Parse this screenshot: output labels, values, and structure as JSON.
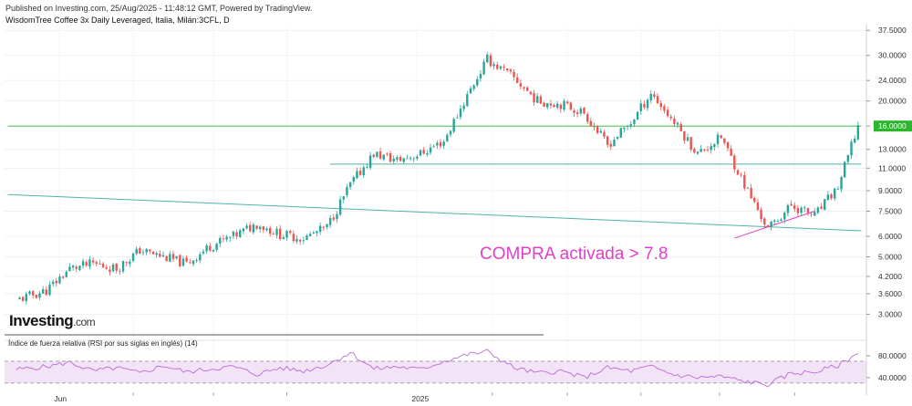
{
  "header": {
    "published": "Published on Investing.com, 25/Aug/2025 - 11:48:12 GMT, Powered by TradingView.",
    "instrument": "WisdomTree Coffee 3x Daily Leveraged, Italia, Milán:3CFL, D"
  },
  "logo": {
    "brand": "Investing",
    "domain": ".com"
  },
  "rsi": {
    "title": "Índice de fuerza relativa (RSI por sus siglas en inglés) (14)"
  },
  "annotation": {
    "text": "COMPRA activada > 7.8"
  },
  "colors": {
    "up": "#26a69a",
    "down": "#ef5350",
    "trend": "#4fb3a8",
    "last": "#2db52d",
    "annot": "#e040c8",
    "rsi": "#b96bd8",
    "rsi_band": "#f3e3f7"
  },
  "chart_data": [
    {
      "type": "candlestick",
      "y_scale": "log",
      "ylim": [
        2.6,
        38.5
      ],
      "y_ticks": [
        "37.5000",
        "30.0000",
        "24.0000",
        "20.0000",
        "16.0000",
        "13.0000",
        "11.0000",
        "9.0000",
        "7.5000",
        "6.0000",
        "5.0000",
        "4.2000",
        "3.6000",
        "3.0000"
      ],
      "x_ticks": [
        "Jun",
        "2025"
      ],
      "last_price": "16.0000",
      "close_path": [
        {
          "d": "2024-05-06",
          "c": 3.4
        },
        {
          "d": "2024-05-24",
          "c": 3.7
        },
        {
          "d": "2024-06-07",
          "c": 4.5
        },
        {
          "d": "2024-06-21",
          "c": 4.7
        },
        {
          "d": "2024-07-05",
          "c": 4.5
        },
        {
          "d": "2024-07-19",
          "c": 5.3
        },
        {
          "d": "2024-08-02",
          "c": 5.0
        },
        {
          "d": "2024-08-16",
          "c": 4.7
        },
        {
          "d": "2024-08-30",
          "c": 5.5
        },
        {
          "d": "2024-09-13",
          "c": 6.0
        },
        {
          "d": "2024-09-27",
          "c": 6.7
        },
        {
          "d": "2024-10-11",
          "c": 6.1
        },
        {
          "d": "2024-10-25",
          "c": 5.9
        },
        {
          "d": "2024-11-08",
          "c": 6.5
        },
        {
          "d": "2024-11-22",
          "c": 9.5
        },
        {
          "d": "2024-12-06",
          "c": 12.5
        },
        {
          "d": "2024-12-20",
          "c": 11.8
        },
        {
          "d": "2025-01-03",
          "c": 12.5
        },
        {
          "d": "2025-01-17",
          "c": 14.0
        },
        {
          "d": "2025-01-31",
          "c": 21.0
        },
        {
          "d": "2025-02-12",
          "c": 29.0
        },
        {
          "d": "2025-02-28",
          "c": 24.5
        },
        {
          "d": "2025-03-14",
          "c": 20.0
        },
        {
          "d": "2025-03-28",
          "c": 19.5
        },
        {
          "d": "2025-04-11",
          "c": 18.0
        },
        {
          "d": "2025-04-25",
          "c": 13.5
        },
        {
          "d": "2025-05-09",
          "c": 16.5
        },
        {
          "d": "2025-05-21",
          "c": 21.5
        },
        {
          "d": "2025-06-04",
          "c": 16.5
        },
        {
          "d": "2025-06-18",
          "c": 12.5
        },
        {
          "d": "2025-07-02",
          "c": 14.5
        },
        {
          "d": "2025-07-16",
          "c": 9.5
        },
        {
          "d": "2025-07-30",
          "c": 6.4
        },
        {
          "d": "2025-08-13",
          "c": 7.9
        },
        {
          "d": "2025-08-27",
          "c": 7.2
        },
        {
          "d": "2025-09-10",
          "c": 9.3
        },
        {
          "d": "2025-09-22",
          "c": 16.0
        }
      ],
      "trendlines": [
        {
          "name": "descending-support",
          "from": {
            "d": "2024-05-01",
            "c": 8.7
          },
          "to": {
            "d": "2025-09-24",
            "c": 6.3
          }
        },
        {
          "name": "horizontal-resistance",
          "from": {
            "d": "2024-11-10",
            "c": 11.4
          },
          "to": {
            "d": "2025-09-24",
            "c": 11.4
          }
        },
        {
          "name": "last-price-line",
          "from": {
            "d": "2024-05-01",
            "c": 16.0
          },
          "to": {
            "d": "2025-09-24",
            "c": 16.0
          }
        },
        {
          "name": "annotation-pointer",
          "from": {
            "d": "2025-07-10",
            "c": 5.9
          },
          "to": {
            "d": "2025-08-27",
            "c": 7.5
          }
        }
      ]
    },
    {
      "type": "line",
      "title": "Índice de fuerza relativa (RSI por sus siglas en inglés) (14)",
      "y_ticks": [
        "80.0000",
        "40.0000"
      ],
      "ylim": [
        18,
        100
      ],
      "band": [
        30,
        70
      ],
      "path": [
        {
          "d": "2024-05-06",
          "v": 55
        },
        {
          "d": "2024-05-24",
          "v": 60
        },
        {
          "d": "2024-06-07",
          "v": 68
        },
        {
          "d": "2024-06-21",
          "v": 52
        },
        {
          "d": "2024-07-05",
          "v": 58
        },
        {
          "d": "2024-07-19",
          "v": 48
        },
        {
          "d": "2024-08-02",
          "v": 62
        },
        {
          "d": "2024-08-16",
          "v": 50
        },
        {
          "d": "2024-08-30",
          "v": 56
        },
        {
          "d": "2024-09-13",
          "v": 60
        },
        {
          "d": "2024-09-27",
          "v": 46
        },
        {
          "d": "2024-10-11",
          "v": 58
        },
        {
          "d": "2024-10-25",
          "v": 52
        },
        {
          "d": "2024-11-08",
          "v": 63
        },
        {
          "d": "2024-11-22",
          "v": 86
        },
        {
          "d": "2024-12-06",
          "v": 56
        },
        {
          "d": "2024-12-20",
          "v": 60
        },
        {
          "d": "2025-01-03",
          "v": 55
        },
        {
          "d": "2025-01-17",
          "v": 70
        },
        {
          "d": "2025-01-31",
          "v": 82
        },
        {
          "d": "2025-02-12",
          "v": 88
        },
        {
          "d": "2025-02-28",
          "v": 58
        },
        {
          "d": "2025-03-14",
          "v": 48
        },
        {
          "d": "2025-03-28",
          "v": 52
        },
        {
          "d": "2025-04-11",
          "v": 40
        },
        {
          "d": "2025-04-25",
          "v": 58
        },
        {
          "d": "2025-05-09",
          "v": 52
        },
        {
          "d": "2025-05-21",
          "v": 60
        },
        {
          "d": "2025-06-04",
          "v": 45
        },
        {
          "d": "2025-06-18",
          "v": 40
        },
        {
          "d": "2025-07-02",
          "v": 42
        },
        {
          "d": "2025-07-16",
          "v": 33
        },
        {
          "d": "2025-07-30",
          "v": 27
        },
        {
          "d": "2025-08-13",
          "v": 48
        },
        {
          "d": "2025-08-27",
          "v": 50
        },
        {
          "d": "2025-09-10",
          "v": 62
        },
        {
          "d": "2025-09-22",
          "v": 84
        }
      ]
    }
  ]
}
